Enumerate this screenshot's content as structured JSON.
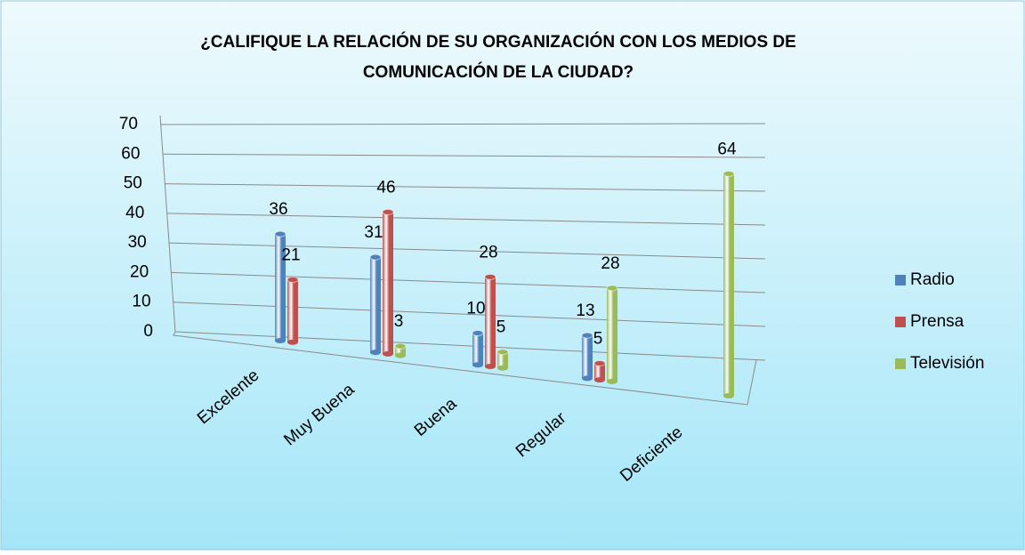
{
  "chart_data": {
    "type": "bar3d",
    "title": [
      "¿CALIFIQUE LA RELACIÓN DE SU ORGANIZACIÓN CON LOS MEDIOS DE",
      "COMUNICACIÓN DE LA CIUDAD?"
    ],
    "categories": [
      "Excelente",
      "Muy Buena",
      "Buena",
      "Regular",
      "Deficiente"
    ],
    "series": [
      {
        "name": "Radio",
        "color": "#4f81bd",
        "values": [
          36,
          31,
          10,
          13,
          null
        ]
      },
      {
        "name": "Prensa",
        "color": "#c0504d",
        "values": [
          21,
          46,
          28,
          5,
          null
        ]
      },
      {
        "name": "Televisión",
        "color": "#9bbb59",
        "values": [
          null,
          3,
          5,
          28,
          64
        ]
      }
    ],
    "ylim": [
      0,
      70
    ],
    "yticks": [
      0,
      10,
      20,
      30,
      40,
      50,
      60,
      70
    ],
    "grid": true,
    "legend": "right"
  }
}
